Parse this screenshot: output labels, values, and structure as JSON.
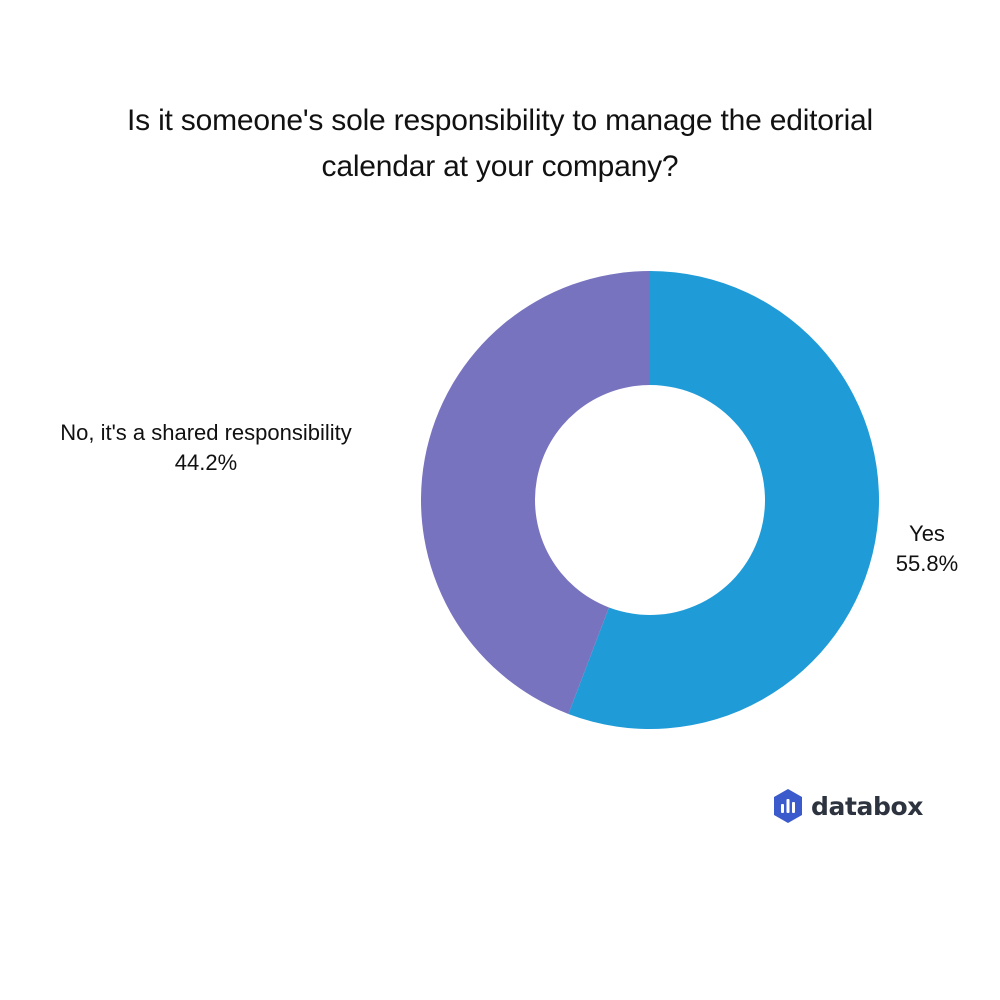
{
  "chart_data": {
    "type": "pie",
    "title": "Is it someone's sole responsibility to manage the editorial calendar at your company?",
    "title_lines": [
      "Is it someone's sole responsibility to manage the editorial",
      "calendar at your company?"
    ],
    "donut": true,
    "slices": [
      {
        "name": "Yes",
        "value": 55.8,
        "value_label": "55.8%",
        "color": "#1f9bd8"
      },
      {
        "name": "No, it's a shared responsibility",
        "value": 44.2,
        "value_label": "44.2%",
        "color": "#7873be"
      }
    ],
    "start_angle": "top",
    "direction": "clockwise",
    "legend": "none"
  },
  "brand": {
    "name": "databox",
    "logo_icon": "databox-logo-icon",
    "logo_color": "#3b5bcc"
  }
}
